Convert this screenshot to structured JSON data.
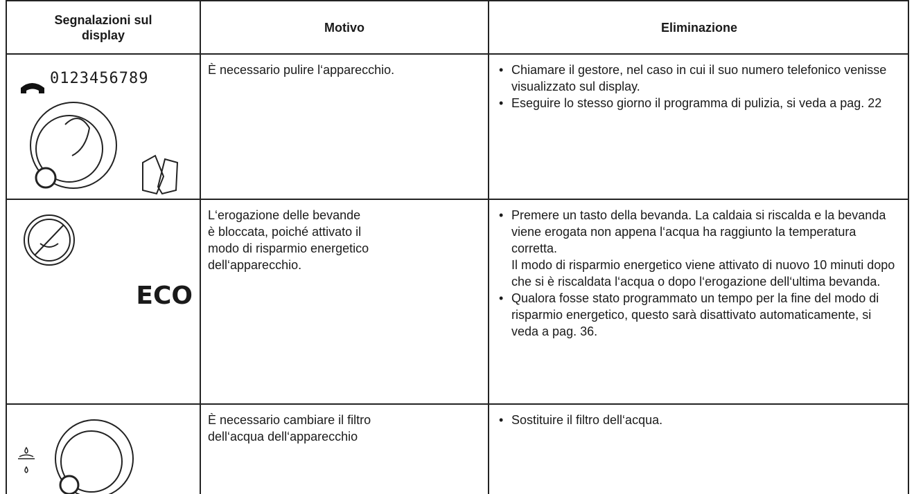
{
  "table": {
    "header": [
      "Segnalazioni sul display",
      "Motivo",
      "Eliminazione"
    ],
    "rows": [
      {
        "display": "0123456789",
        "reason": [
          "È necessario pulire l‘apparecchio."
        ],
        "remedy": [
          [
            "Chiamare il gestore, nel caso in cui il suo numero telefonico venisse visualizzato sul display."
          ],
          [
            "Eseguire lo stesso giorno il programma di pulizia, si veda a pag. 22"
          ]
        ]
      },
      {
        "display": "ECO",
        "reason": [
          "L‘erogazione delle bevande",
          "è bloccata, poiché attivato il",
          "modo di risparmio energetico",
          "dell‘apparecchio."
        ],
        "remedy": [
          [
            "Premere un tasto della bevanda. La caldaia si riscalda e la bevanda viene erogata non appena l‘acqua ha raggiunto la temperatura corretta.",
            "Il modo di risparmio energetico viene attivato di nuovo 10 minuti dopo che si è riscaldata l‘acqua o dopo l‘erogazione dell‘ultima bevanda."
          ],
          [
            "Qualora fosse stato programmato un tempo per la fine del modo di risparmio energetico, questo sarà disattivato automaticamente, si veda a pag. 36."
          ]
        ]
      },
      {
        "reason": [
          "È necessario cambiare il filtro",
          "dell‘acqua dell‘apparecchio"
        ],
        "remedy": [
          [
            "Sostituire il filtro dell‘acqua."
          ]
        ]
      }
    ]
  }
}
